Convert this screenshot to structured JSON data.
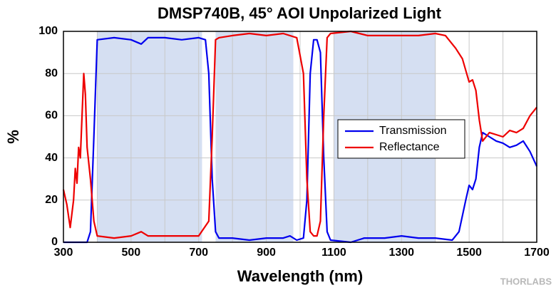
{
  "chart_data": {
    "type": "line",
    "title": "DMSP740B, 45° AOI Unpolarized Light",
    "xlabel": "Wavelength (nm)",
    "ylabel": "%",
    "watermark": "THORLABS",
    "xlim": [
      300,
      1700
    ],
    "ylim": [
      0,
      100
    ],
    "xticks": [
      300,
      500,
      700,
      900,
      1100,
      1300,
      1500,
      1700
    ],
    "xminor": [
      400,
      600,
      800,
      1000,
      1200,
      1400,
      1600
    ],
    "yticks": [
      0,
      20,
      40,
      60,
      80,
      100
    ],
    "grid": true,
    "legend": "right",
    "shaded_regions": [
      [
        400,
        710
      ],
      [
        750,
        980
      ],
      [
        1100,
        1400
      ]
    ],
    "shade_color": "#d5dff2",
    "series": [
      {
        "name": "Transmission",
        "color": "#0000ee",
        "x": [
          300,
          370,
          380,
          390,
          400,
          450,
          500,
          530,
          550,
          600,
          650,
          700,
          720,
          730,
          740,
          750,
          760,
          800,
          850,
          900,
          950,
          970,
          990,
          1010,
          1020,
          1030,
          1040,
          1050,
          1060,
          1070,
          1080,
          1090,
          1150,
          1190,
          1250,
          1300,
          1350,
          1400,
          1450,
          1470,
          1490,
          1500,
          1510,
          1520,
          1530,
          1540,
          1560,
          1580,
          1600,
          1620,
          1640,
          1660,
          1680,
          1700
        ],
        "values": [
          0,
          0,
          5,
          50,
          96,
          97,
          96,
          94,
          97,
          97,
          96,
          97,
          96,
          80,
          30,
          5,
          2,
          2,
          1,
          2,
          2,
          3,
          1,
          2,
          20,
          80,
          96,
          96,
          90,
          40,
          5,
          1,
          0,
          2,
          2,
          3,
          2,
          2,
          1,
          5,
          20,
          27,
          25,
          30,
          45,
          52,
          50,
          48,
          47,
          45,
          46,
          48,
          43,
          36
        ]
      },
      {
        "name": "Reflectance",
        "color": "#ee0000",
        "x": [
          300,
          310,
          320,
          330,
          335,
          340,
          345,
          350,
          355,
          360,
          365,
          370,
          380,
          390,
          400,
          450,
          500,
          530,
          550,
          600,
          650,
          700,
          730,
          740,
          750,
          760,
          800,
          850,
          900,
          950,
          990,
          1010,
          1020,
          1030,
          1040,
          1050,
          1060,
          1070,
          1080,
          1090,
          1150,
          1200,
          1250,
          1300,
          1350,
          1400,
          1430,
          1460,
          1480,
          1500,
          1510,
          1520,
          1530,
          1540,
          1560,
          1580,
          1600,
          1620,
          1640,
          1660,
          1680,
          1700
        ],
        "values": [
          25,
          18,
          7,
          20,
          35,
          28,
          45,
          40,
          60,
          80,
          70,
          45,
          30,
          10,
          3,
          2,
          3,
          5,
          3,
          3,
          3,
          3,
          10,
          50,
          96,
          97,
          98,
          99,
          98,
          99,
          97,
          80,
          30,
          5,
          3,
          3,
          10,
          60,
          97,
          99,
          100,
          98,
          98,
          98,
          98,
          99,
          98,
          92,
          87,
          76,
          77,
          72,
          58,
          48,
          52,
          51,
          50,
          53,
          52,
          54,
          60,
          64
        ]
      }
    ]
  }
}
